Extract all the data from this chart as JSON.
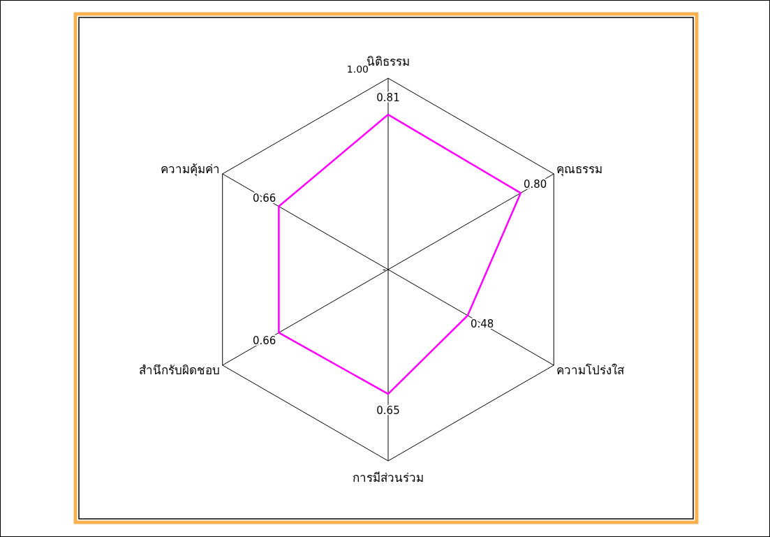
{
  "chart_data": {
    "type": "radar",
    "categories": [
      "นิติธรรม",
      "คุณธรรม",
      "ความโปร่งใส",
      "การมีส่วนร่วม",
      "สำนึกรับผิดชอบ",
      "ความคุ้มค่า"
    ],
    "series": [
      {
        "color": "#ff00ff",
        "values": [
          0.81,
          0.8,
          0.48,
          0.65,
          0.66,
          0.66
        ],
        "value_labels": [
          "0.81",
          "0.80",
          "0.48",
          "0.65",
          "0.66",
          "0.66"
        ]
      }
    ],
    "ylim": [
      0,
      1
    ],
    "yticks": [
      {
        "value": 0,
        "label": "-"
      },
      {
        "value": 1,
        "label": "1.00"
      }
    ]
  }
}
